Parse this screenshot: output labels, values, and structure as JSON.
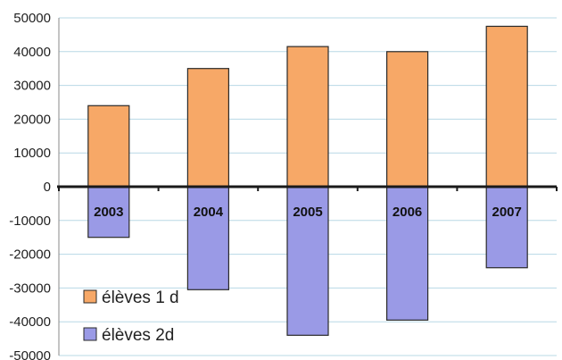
{
  "chart_data": {
    "type": "bar",
    "categories": [
      "2003",
      "2004",
      "2005",
      "2006",
      "2007"
    ],
    "series": [
      {
        "name": "élèves 1 d",
        "values": [
          24000,
          35000,
          41500,
          40000,
          47500
        ],
        "color": "#F7A867"
      },
      {
        "name": "élèves 2d",
        "values": [
          -15000,
          -30500,
          -44000,
          -39500,
          -24000
        ],
        "color": "#9A9AE6"
      }
    ],
    "ylim": [
      -50000,
      50000
    ],
    "yticks": [
      "50000",
      "40000",
      "30000",
      "20000",
      "10000",
      "0",
      "-10000",
      "-20000",
      "-30000",
      "-40000",
      "-50000"
    ],
    "title": "",
    "xlabel": "",
    "ylabel": "",
    "grid": true,
    "legend_position": "bottom-left",
    "colors": {
      "grid": "#b8d8e6",
      "axis": "#1a1a1a",
      "bar_edge": "#2a2a2a"
    }
  }
}
